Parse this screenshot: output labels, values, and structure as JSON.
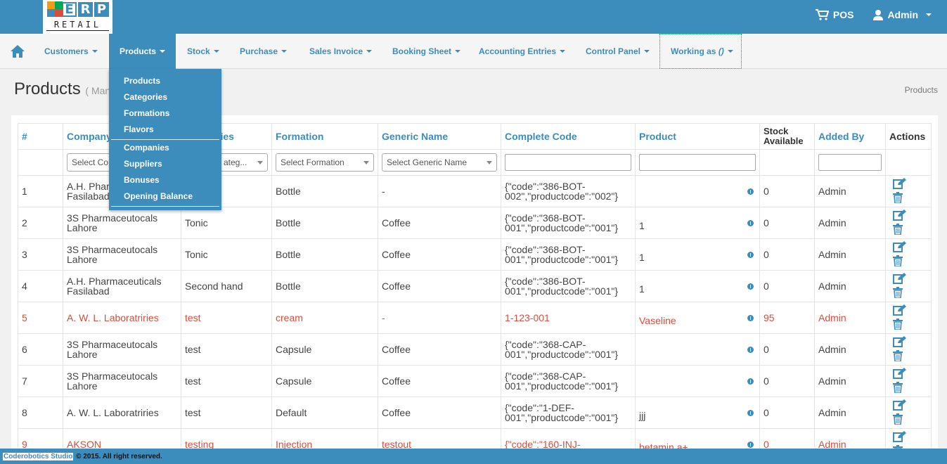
{
  "brand": {
    "letters": [
      "E",
      "R",
      "P"
    ],
    "subtitle": "RETAIL"
  },
  "topbar": {
    "pos_label": "POS",
    "user_label": "Admin"
  },
  "nav": {
    "items": [
      "Customers",
      "Products",
      "Stock",
      "Purchase",
      "Sales Invoice",
      "Booking Sheet",
      "Accounting Entries",
      "Control Panel"
    ],
    "working_as": "Working as",
    "working_value": "()"
  },
  "products_menu": {
    "group1": [
      "Products",
      "Categories",
      "Formations",
      "Flavors"
    ],
    "group2": [
      "Companies",
      "Suppliers",
      "Bonuses",
      "Opening Balance"
    ]
  },
  "page": {
    "title": "Products",
    "subtitle": "( Man",
    "breadcrumb": "Products"
  },
  "table": {
    "headers": {
      "num": "#",
      "company": "Company",
      "category": "ries",
      "formation": "Formation",
      "generic": "Generic Name",
      "code": "Complete Code",
      "product": "Product",
      "stock_line1": "Stock",
      "stock_line2": "Available",
      "added_by": "Added By",
      "actions": "Actions"
    },
    "filters": {
      "company": "Select Co",
      "category": "ateg...",
      "formation": "Select Formation",
      "generic": "Select Generic Name"
    },
    "rows": [
      {
        "num": "1",
        "company": "A.H. Phar",
        "company2": "Fasilabad",
        "category": "",
        "formation": "Bottle",
        "generic": "-",
        "code": "{\"code\":\"386-BOT-",
        "code2": "002\",\"productcode\":\"002\"}",
        "product": "",
        "stock": "0",
        "added_by": "Admin",
        "highlight": false
      },
      {
        "num": "2",
        "company": "3S Pharmaceutocals",
        "company2": "Lahore",
        "category": "Tonic",
        "formation": "Bottle",
        "generic": "Coffee",
        "code": "{\"code\":\"368-BOT-",
        "code2": "001\",\"productcode\":\"001\"}",
        "product": "1",
        "stock": "0",
        "added_by": "Admin",
        "highlight": false
      },
      {
        "num": "3",
        "company": "3S Pharmaceutocals",
        "company2": "Lahore",
        "category": "Tonic",
        "formation": "Bottle",
        "generic": "Coffee",
        "code": "{\"code\":\"368-BOT-",
        "code2": "001\",\"productcode\":\"001\"}",
        "product": "1",
        "stock": "0",
        "added_by": "Admin",
        "highlight": false
      },
      {
        "num": "4",
        "company": "A.H. Pharmaceuticals",
        "company2": "Fasilabad",
        "category": "Second hand",
        "formation": "Bottle",
        "generic": "Coffee",
        "code": "{\"code\":\"386-BOT-",
        "code2": "001\",\"productcode\":\"001\"}",
        "product": "1",
        "stock": "0",
        "added_by": "Admin",
        "highlight": false
      },
      {
        "num": "5",
        "company": "A. W. L. Laboratriries",
        "company2": "",
        "category": "test",
        "formation": "cream",
        "generic": "-",
        "code": "1-123-001",
        "code2": "",
        "product": "Vaseline",
        "stock": "95",
        "added_by": "Admin",
        "highlight": true
      },
      {
        "num": "6",
        "company": "3S Pharmaceutocals",
        "company2": "Lahore",
        "category": "test",
        "formation": "Capsule",
        "generic": "Coffee",
        "code": "{\"code\":\"368-CAP-",
        "code2": "001\",\"productcode\":\"001\"}",
        "product": "",
        "stock": "0",
        "added_by": "Admin",
        "highlight": false
      },
      {
        "num": "7",
        "company": "3S Pharmaceutocals",
        "company2": "Lahore",
        "category": "test",
        "formation": "Capsule",
        "generic": "Coffee",
        "code": "{\"code\":\"368-CAP-",
        "code2": "001\",\"productcode\":\"001\"}",
        "product": "",
        "stock": "0",
        "added_by": "Admin",
        "highlight": false
      },
      {
        "num": "8",
        "company": "A. W. L. Laboratriries",
        "company2": "",
        "category": "test",
        "formation": "Default",
        "generic": "Coffee",
        "code": "{\"code\":\"1-DEF-",
        "code2": "001\",\"productcode\":\"001\"}",
        "product": "jjj",
        "stock": "0",
        "added_by": "Admin",
        "highlight": false
      },
      {
        "num": "9",
        "company": "AKSON",
        "company2": "",
        "category": "testing",
        "formation": "Injection",
        "generic": "testout",
        "code": "{\"code\":\"160-INJ-",
        "code2": "",
        "product": "betamin a+",
        "stock": "0",
        "added_by": "Admin",
        "highlight": true
      }
    ]
  },
  "footer": {
    "studio": "Coderobotics Studio",
    "rest": " © 2015. All right reserved."
  },
  "colors": {
    "primary": "#3c8dbc",
    "highlight_text": "#dd4b39"
  }
}
